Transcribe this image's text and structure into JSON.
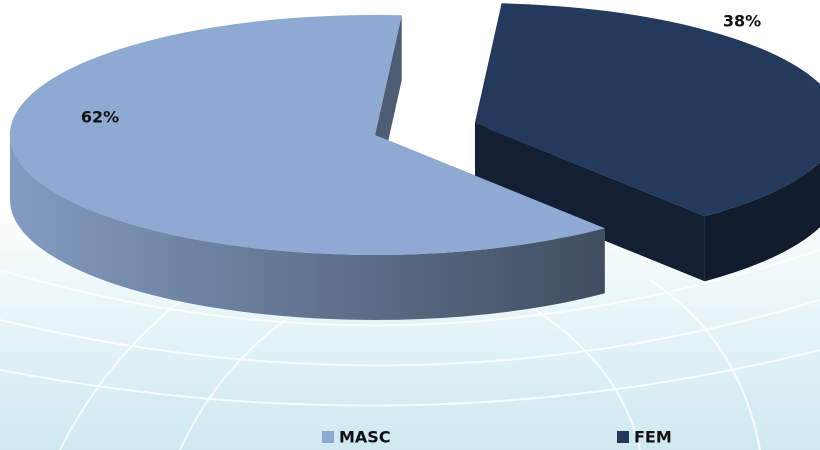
{
  "chart_data": {
    "type": "pie",
    "categories": [
      "MASC",
      "FEM"
    ],
    "values": [
      62,
      38
    ],
    "value_labels": [
      "62%",
      "38%"
    ],
    "colors": [
      "#8ea9d2",
      "#233a5c"
    ],
    "legend": "bottom"
  }
}
